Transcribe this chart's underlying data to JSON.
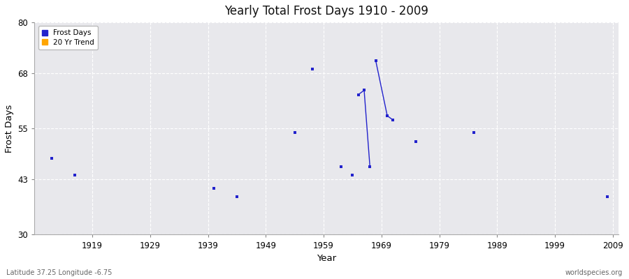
{
  "title": "Yearly Total Frost Days 1910 - 2009",
  "xlabel": "Year",
  "ylabel": "Frost Days",
  "xlim": [
    1909,
    2010
  ],
  "ylim": [
    30,
    80
  ],
  "yticks": [
    30,
    43,
    55,
    68,
    80
  ],
  "xticks": [
    1919,
    1929,
    1939,
    1949,
    1959,
    1969,
    1979,
    1989,
    1999,
    2009
  ],
  "fig_bg_color": "#ffffff",
  "plot_bg_color": "#e8e8ec",
  "grid_color": "#ffffff",
  "frost_color": "#2222cc",
  "trend_color": "#ffa500",
  "scatter_points": [
    [
      1912,
      48
    ],
    [
      1916,
      44
    ],
    [
      1940,
      41
    ],
    [
      1944,
      39
    ],
    [
      1954,
      54
    ],
    [
      1957,
      69
    ],
    [
      1962,
      46
    ],
    [
      1964,
      44
    ],
    [
      1965,
      63
    ],
    [
      1966,
      64
    ],
    [
      1967,
      46
    ],
    [
      1968,
      71
    ],
    [
      1970,
      58
    ],
    [
      1971,
      57
    ],
    [
      1975,
      52
    ],
    [
      1985,
      54
    ],
    [
      2008,
      39
    ]
  ],
  "line_segments": [
    [
      [
        1965,
        63
      ],
      [
        1966,
        64
      ],
      [
        1967,
        46
      ]
    ],
    [
      [
        1968,
        71
      ],
      [
        1970,
        58
      ],
      [
        1971,
        57
      ]
    ]
  ],
  "footer_left": "Latitude 37.25 Longitude -6.75",
  "footer_right": "worldspecies.org"
}
